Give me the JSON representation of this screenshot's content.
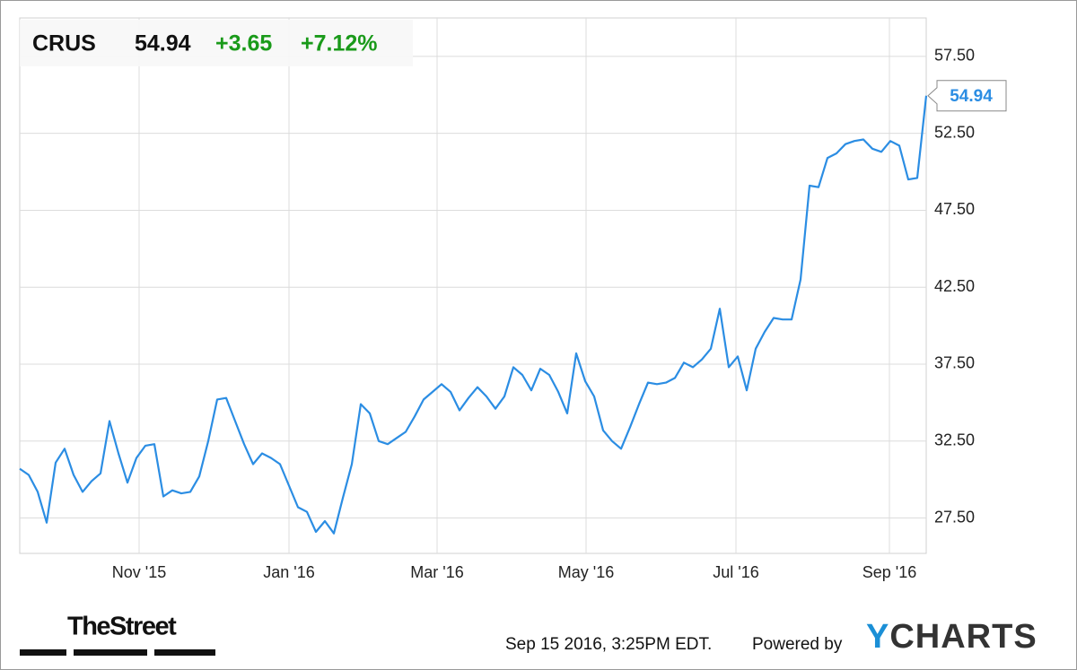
{
  "chart_data": {
    "type": "line",
    "header": {
      "ticker": "CRUS",
      "price": "54.94",
      "change": "+3.65",
      "change_percent": "+7.12%"
    },
    "color": "#2b8de3",
    "header_colors": {
      "ticker": "#111111",
      "price": "#111111",
      "change": "#1a9a1a",
      "change_percent": "#1a9a1a"
    },
    "values": [
      30.7,
      30.3,
      29.2,
      27.2,
      31.1,
      32.0,
      30.3,
      29.2,
      29.9,
      30.4,
      33.8,
      31.7,
      29.8,
      31.4,
      32.2,
      32.3,
      28.9,
      29.3,
      29.1,
      29.2,
      30.2,
      32.5,
      35.2,
      35.3,
      33.8,
      32.3,
      31.0,
      31.7,
      31.4,
      31.0,
      29.6,
      28.2,
      27.9,
      26.6,
      27.3,
      26.5,
      28.8,
      31.0,
      34.9,
      34.3,
      32.5,
      32.3,
      32.7,
      33.1,
      34.1,
      35.2,
      35.7,
      36.2,
      35.7,
      34.5,
      35.3,
      36.0,
      35.4,
      34.6,
      35.4,
      37.3,
      36.8,
      35.8,
      37.2,
      36.8,
      35.7,
      34.3,
      38.2,
      36.4,
      35.4,
      33.2,
      32.5,
      32.0,
      33.4,
      34.9,
      36.3,
      36.2,
      36.3,
      36.6,
      37.6,
      37.3,
      37.8,
      38.5,
      41.1,
      37.3,
      38.0,
      35.8,
      38.5,
      39.6,
      40.5,
      40.4,
      40.4,
      43.0,
      49.1,
      49.0,
      50.9,
      51.2,
      51.8,
      52.0,
      52.1,
      51.5,
      51.3,
      52.0,
      51.7,
      49.5,
      49.6,
      54.94
    ],
    "xlim": [
      0,
      101
    ],
    "xticks": [
      {
        "value": 13.3,
        "label": "Nov '15"
      },
      {
        "value": 30.0,
        "label": "Jan '16"
      },
      {
        "value": 46.5,
        "label": "Mar '16"
      },
      {
        "value": 63.1,
        "label": "May '16"
      },
      {
        "value": 79.8,
        "label": "Jul '16"
      },
      {
        "value": 96.9,
        "label": "Sep '16"
      }
    ],
    "ylim": [
      25.2,
      60
    ],
    "yticks": [
      {
        "value": 27.5,
        "label": "27.50"
      },
      {
        "value": 32.5,
        "label": "32.50"
      },
      {
        "value": 37.5,
        "label": "37.50"
      },
      {
        "value": 42.5,
        "label": "42.50"
      },
      {
        "value": 47.5,
        "label": "47.50"
      },
      {
        "value": 52.5,
        "label": "52.50"
      },
      {
        "value": 57.5,
        "label": "57.50"
      }
    ],
    "grid": true,
    "footer": {
      "source": "TheStreet",
      "timestamp": "Sep 15 2016, 3:25PM EDT.",
      "powered_by": "Powered by",
      "brand": "YCHARTS"
    }
  }
}
